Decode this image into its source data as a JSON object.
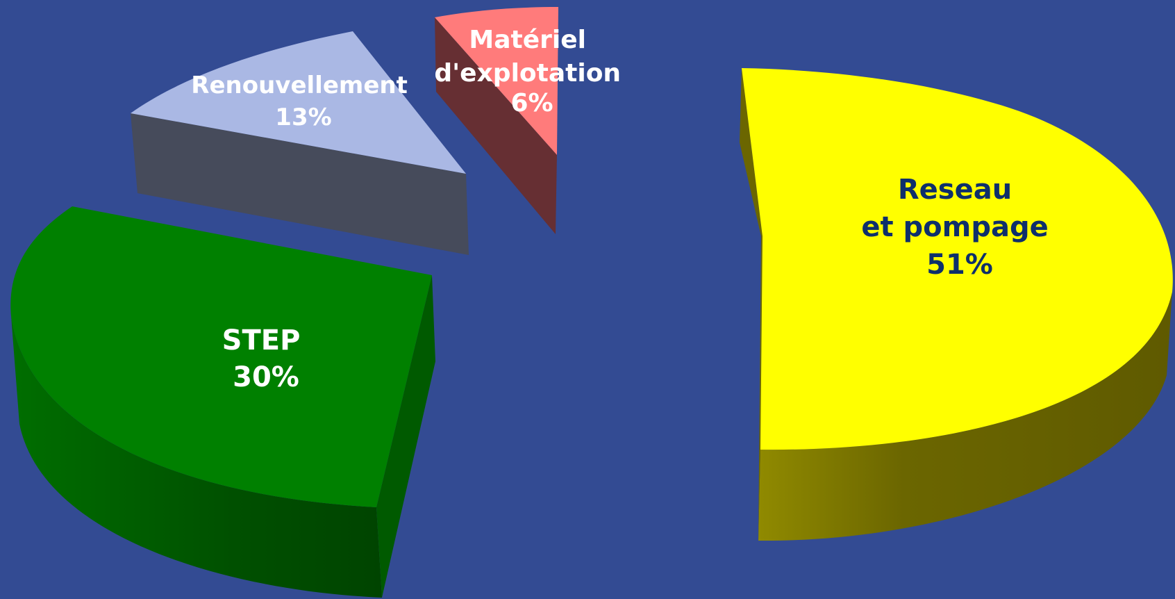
{
  "chart_data": {
    "type": "pie",
    "style": "3d-exploded",
    "background_color": "#334b93",
    "slices": [
      {
        "label_lines": [
          "Reseau",
          "et pompage"
        ],
        "value": 51,
        "value_label": "51%",
        "color": "#ffff00",
        "side_color": "#6b6600",
        "label_color": "#0e2f6b"
      },
      {
        "label_lines": [
          "STEP"
        ],
        "value": 30,
        "value_label": "30%",
        "color": "#008000",
        "side_color": "#005a00",
        "label_color": "#ffffff"
      },
      {
        "label_lines": [
          "Renouvellement"
        ],
        "value": 13,
        "value_label": "13%",
        "color": "#aab8e4",
        "side_color": "#464b5b",
        "label_color": "#ffffff"
      },
      {
        "label_lines": [
          "Matériel",
          "d'explotation"
        ],
        "value": 6,
        "value_label": "6%",
        "color": "#ff7b7b",
        "side_color": "#662f33",
        "label_color": "#ffffff"
      }
    ]
  }
}
